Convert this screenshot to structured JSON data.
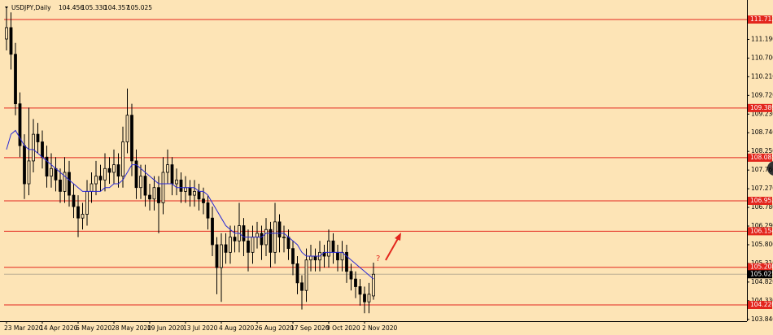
{
  "chart_data": {
    "type": "candlestick",
    "header": {
      "symbol": "USDJPY,Daily",
      "ohlc": [
        104.456,
        {
          "value": 105.33,
          "label": "105.330"
        },
        104.357,
        105.025
      ]
    },
    "categories": [
      "23 Mar 2020",
      null,
      null,
      null,
      null,
      null,
      null,
      null,
      "14 Apr 2020",
      null,
      null,
      null,
      null,
      null,
      null,
      null,
      "6 May 2020",
      null,
      null,
      null,
      null,
      null,
      null,
      null,
      "28 May 2020",
      null,
      null,
      null,
      null,
      null,
      null,
      null,
      "19 Jun 2020",
      null,
      null,
      null,
      null,
      null,
      null,
      null,
      "13 Jul 2020",
      null,
      null,
      null,
      null,
      null,
      null,
      null,
      "4 Aug 2020",
      null,
      null,
      null,
      null,
      null,
      null,
      null,
      "26 Aug 2020",
      null,
      null,
      null,
      null,
      null,
      null,
      null,
      "17 Sep 2020",
      null,
      null,
      null,
      null,
      null,
      null,
      null,
      "9 Oct 2020",
      null,
      null,
      null,
      null,
      null,
      null,
      null,
      "2 Nov 2020",
      null,
      null
    ],
    "open": [
      111.2,
      111.5,
      110.8,
      109.5,
      108.4,
      107.4,
      108.0,
      108.7,
      108.5,
      108.1,
      107.6,
      107.8,
      107.5,
      107.2,
      107.7,
      107.1,
      106.8,
      106.5,
      106.6,
      107.2,
      107.4,
      107.6,
      107.5,
      107.8,
      107.7,
      107.9,
      107.6,
      108.5,
      109.2,
      108.0,
      107.3,
      107.6,
      107.1,
      107.0,
      107.3,
      106.9,
      107.7,
      107.9,
      107.4,
      107.5,
      107.2,
      107.3,
      107.1,
      107.2,
      107.0,
      106.9,
      106.5,
      105.8,
      105.2,
      105.8,
      105.6,
      106.0,
      105.9,
      106.3,
      105.9,
      105.6,
      106.0,
      106.1,
      105.8,
      106.2,
      105.6,
      106.4,
      106.0,
      106.0,
      105.7,
      105.3,
      104.8,
      104.6,
      105.4,
      105.5,
      105.4,
      105.6,
      105.5,
      105.9,
      105.6,
      105.4,
      105.6,
      105.1,
      104.9,
      104.7,
      104.5,
      104.3,
      104.456
    ],
    "high": [
      112.0,
      111.9,
      111.1,
      109.8,
      108.7,
      109.4,
      109.1,
      109.0,
      108.8,
      108.4,
      108.2,
      108.1,
      107.8,
      108.1,
      108.0,
      107.4,
      107.1,
      106.9,
      107.5,
      107.7,
      108.0,
      107.9,
      108.2,
      108.1,
      108.3,
      108.2,
      108.9,
      109.9,
      109.5,
      108.3,
      107.9,
      107.9,
      107.4,
      107.6,
      107.6,
      108.1,
      108.3,
      108.1,
      107.8,
      107.7,
      107.6,
      107.5,
      107.5,
      107.4,
      107.3,
      107.1,
      106.8,
      106.0,
      106.1,
      106.1,
      106.3,
      106.3,
      106.9,
      106.5,
      106.2,
      106.3,
      106.4,
      106.3,
      106.5,
      106.4,
      106.9,
      106.6,
      106.3,
      106.2,
      105.9,
      105.5,
      105.0,
      105.7,
      105.8,
      105.7,
      105.9,
      105.8,
      106.2,
      106.1,
      105.8,
      105.9,
      105.8,
      105.3,
      105.1,
      104.9,
      104.7,
      104.8,
      105.33
    ],
    "low": [
      110.9,
      110.4,
      109.2,
      108.1,
      107.0,
      107.1,
      107.7,
      108.2,
      107.8,
      107.3,
      107.3,
      107.2,
      106.9,
      106.9,
      106.8,
      106.5,
      106.0,
      106.2,
      106.3,
      106.9,
      107.1,
      107.2,
      107.2,
      107.4,
      107.4,
      107.3,
      107.3,
      108.2,
      107.6,
      107.0,
      107.0,
      106.8,
      106.7,
      106.7,
      106.1,
      106.6,
      107.4,
      107.1,
      107.1,
      106.9,
      106.9,
      106.8,
      106.8,
      106.7,
      106.6,
      106.2,
      105.5,
      104.5,
      104.3,
      105.3,
      105.3,
      105.6,
      105.6,
      105.5,
      105.1,
      105.3,
      105.7,
      105.4,
      105.5,
      105.2,
      105.3,
      105.6,
      105.6,
      105.4,
      105.0,
      104.5,
      104.1,
      104.3,
      105.1,
      105.1,
      105.1,
      105.2,
      105.2,
      105.3,
      105.1,
      105.1,
      104.8,
      104.6,
      104.4,
      104.2,
      104.0,
      104.0,
      104.357
    ],
    "close": [
      111.5,
      110.8,
      109.5,
      108.4,
      107.4,
      108.0,
      108.7,
      108.5,
      108.1,
      107.6,
      107.8,
      107.5,
      107.2,
      107.7,
      107.1,
      106.8,
      106.5,
      106.6,
      107.2,
      107.4,
      107.6,
      107.5,
      107.8,
      107.7,
      107.9,
      107.6,
      108.5,
      109.2,
      108.0,
      107.3,
      107.6,
      107.1,
      107.0,
      107.3,
      106.9,
      107.7,
      107.9,
      107.4,
      107.5,
      107.2,
      107.3,
      107.1,
      107.2,
      107.0,
      106.9,
      106.5,
      105.8,
      105.2,
      105.8,
      105.6,
      106.0,
      105.9,
      106.3,
      105.9,
      105.6,
      106.0,
      106.1,
      105.8,
      106.2,
      105.6,
      106.4,
      106.0,
      106.0,
      105.7,
      105.3,
      104.8,
      104.6,
      105.4,
      105.5,
      105.4,
      105.6,
      105.5,
      105.9,
      105.6,
      105.4,
      105.6,
      105.1,
      104.9,
      104.7,
      104.5,
      104.3,
      104.5,
      105.025
    ],
    "ma_values": [
      108.3,
      108.7,
      108.8,
      108.6,
      108.4,
      108.3,
      108.3,
      108.2,
      108.1,
      108.0,
      107.9,
      107.8,
      107.7,
      107.6,
      107.5,
      107.4,
      107.3,
      107.2,
      107.2,
      107.2,
      107.2,
      107.2,
      107.3,
      107.3,
      107.4,
      107.4,
      107.5,
      107.7,
      107.9,
      107.9,
      107.8,
      107.7,
      107.6,
      107.5,
      107.4,
      107.4,
      107.4,
      107.4,
      107.3,
      107.3,
      107.3,
      107.3,
      107.3,
      107.2,
      107.2,
      107.1,
      106.9,
      106.7,
      106.5,
      106.3,
      106.2,
      106.1,
      106.1,
      106.0,
      106.0,
      106.0,
      106.0,
      106.0,
      106.1,
      106.1,
      106.1,
      106.1,
      106.1,
      106.0,
      105.9,
      105.8,
      105.6,
      105.5,
      105.5,
      105.5,
      105.5,
      105.6,
      105.6,
      105.6,
      105.6,
      105.6,
      105.5,
      105.4,
      105.3,
      105.2,
      105.1,
      105.0,
      104.9
    ],
    "ma_color": "#2a2ad6",
    "candle_color": "#000000",
    "background": "#fde4b6",
    "ylim": [
      103.793,
      112.118
    ],
    "yticks": [
      {
        "value": 111.19,
        "label": "111.190"
      },
      {
        "value": 110.7,
        "label": "110.700"
      },
      {
        "value": 110.21,
        "label": "110.210"
      },
      {
        "value": 109.72,
        "label": "109.720"
      },
      {
        "value": 109.23,
        "label": "109.230"
      },
      {
        "value": 108.74,
        "label": "108.740"
      },
      {
        "value": 108.25,
        "label": "108.250"
      },
      {
        "value": 107.76,
        "label": "107.760"
      },
      {
        "value": 107.27,
        "label": "107.270"
      },
      {
        "value": 106.78,
        "label": "106.780"
      },
      {
        "value": 106.29,
        "label": "106.290"
      },
      {
        "value": 105.8,
        "label": "105.800"
      },
      {
        "value": 105.31,
        "label": "105.310"
      },
      {
        "value": 104.82,
        "label": "104.820"
      },
      {
        "value": 104.33,
        "label": "104.330"
      },
      {
        "value": 103.84,
        "label": "103.840"
      }
    ],
    "levels": [
      111.712,
      109.389,
      108.085,
      106.952,
      106.154,
      105.208,
      {
        "value": 104.22,
        "label": "104.220"
      }
    ],
    "level_color": "#e3261d",
    "current_price": 105.025,
    "current_color": "#000000",
    "annotation": {
      "text": "?",
      "color": "#e3261d"
    },
    "grid": false
  }
}
